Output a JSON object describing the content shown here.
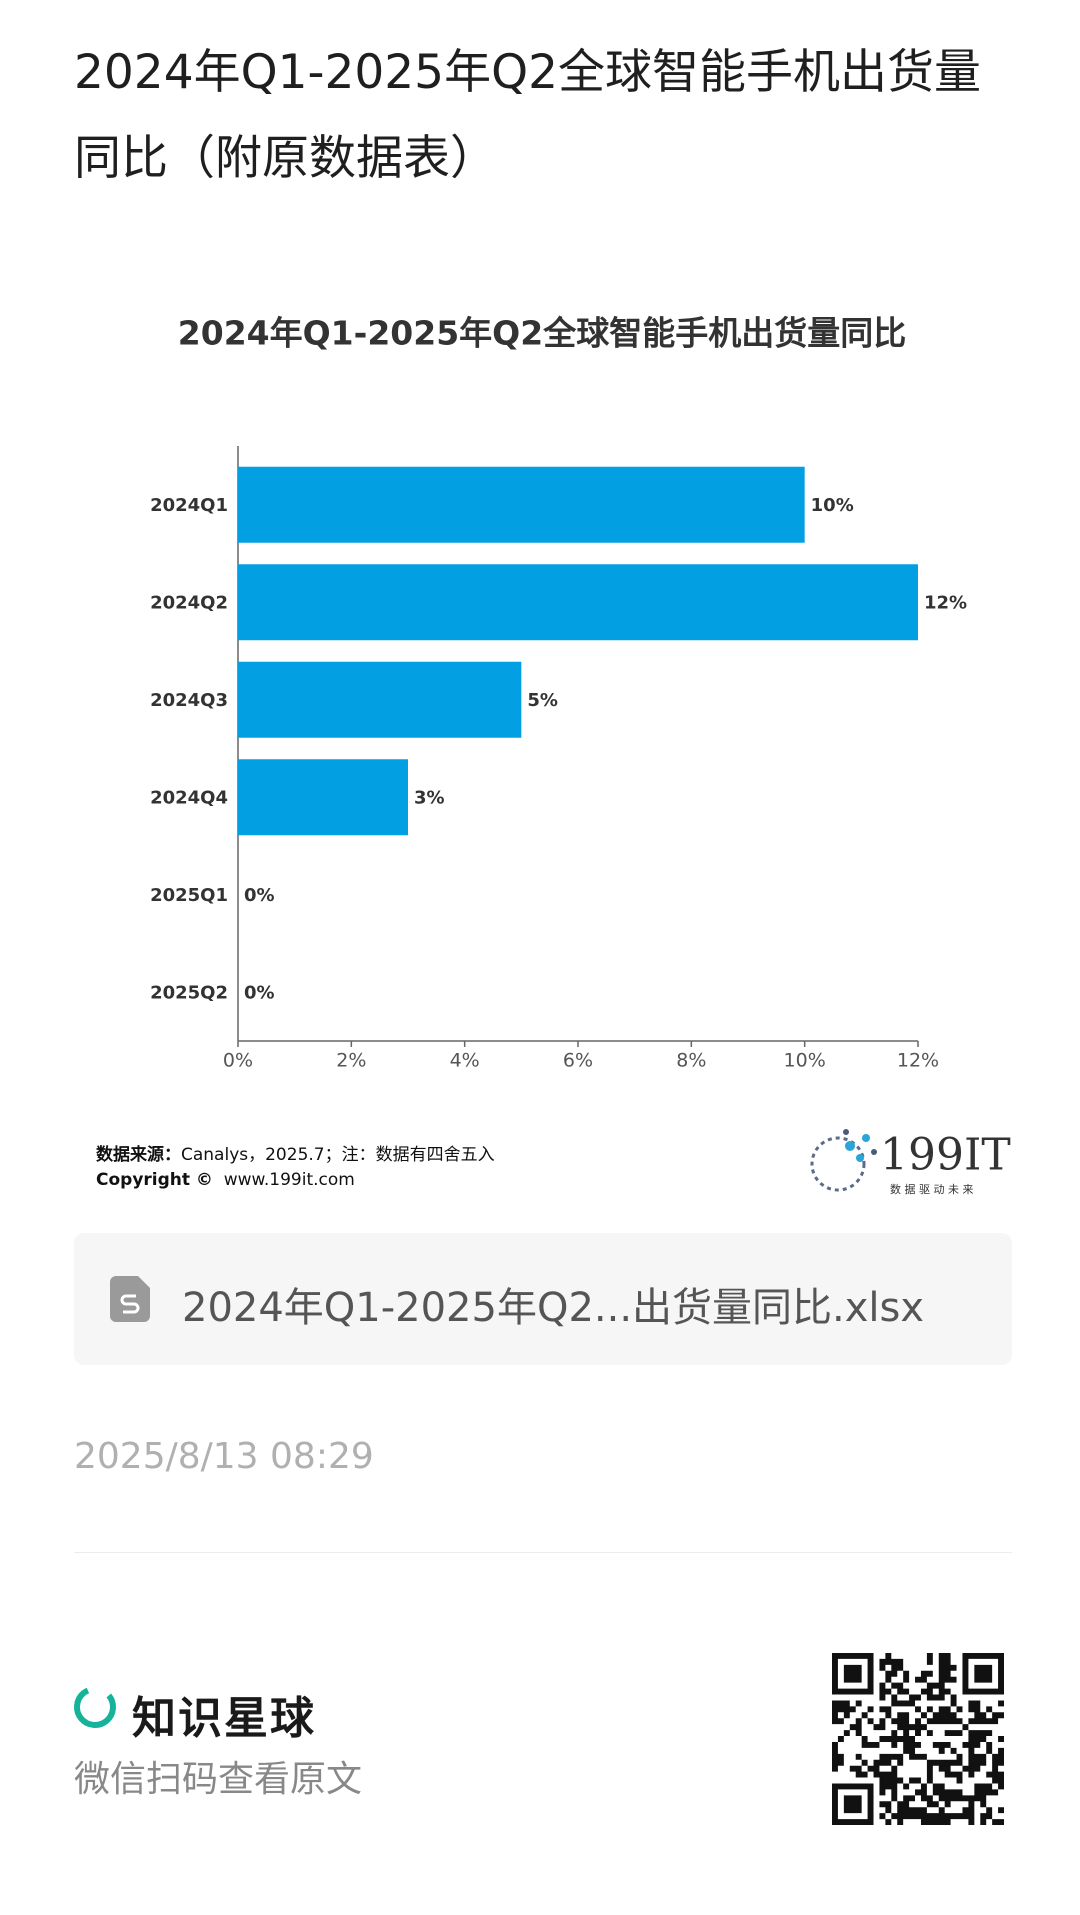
{
  "header": {
    "title": "2024年Q1-2025年Q2全球智能手机出货量同比（附原数据表）"
  },
  "chart_data": {
    "type": "bar",
    "orientation": "horizontal",
    "title": "2024年Q1-2025年Q2全球智能手机出货量同比",
    "categories": [
      "2024Q1",
      "2024Q2",
      "2024Q3",
      "2024Q4",
      "2025Q1",
      "2025Q2"
    ],
    "values": [
      10,
      12,
      5,
      3,
      0,
      0
    ],
    "value_labels": [
      "10%",
      "12%",
      "5%",
      "3%",
      "0%",
      "0%"
    ],
    "color": "#039fe3",
    "xlim": [
      0,
      12
    ],
    "xticks": [
      {
        "value": 0,
        "label": "0%"
      },
      {
        "value": 2,
        "label": "2%"
      },
      {
        "value": 4,
        "label": "4%"
      },
      {
        "value": 6,
        "label": "6%"
      },
      {
        "value": 8,
        "label": "8%"
      },
      {
        "value": 10,
        "label": "10%"
      },
      {
        "value": 12,
        "label": "12%"
      }
    ],
    "grid": false
  },
  "source": {
    "label": "数据来源：",
    "text": "Canalys，2025.7；注：数据有四舍五入",
    "copyright_label": "Copyright ©",
    "copyright_url": "www.199it.com"
  },
  "logo": {
    "name": "199IT",
    "slogan": "数 据 驱 动 未 来"
  },
  "attachment": {
    "file_name": "2024年Q1-2025年Q2...出货量同比.xlsx"
  },
  "date": "2025/8/13 08:29",
  "footer": {
    "brand": "知识星球",
    "hint": "微信扫码查看原文"
  }
}
